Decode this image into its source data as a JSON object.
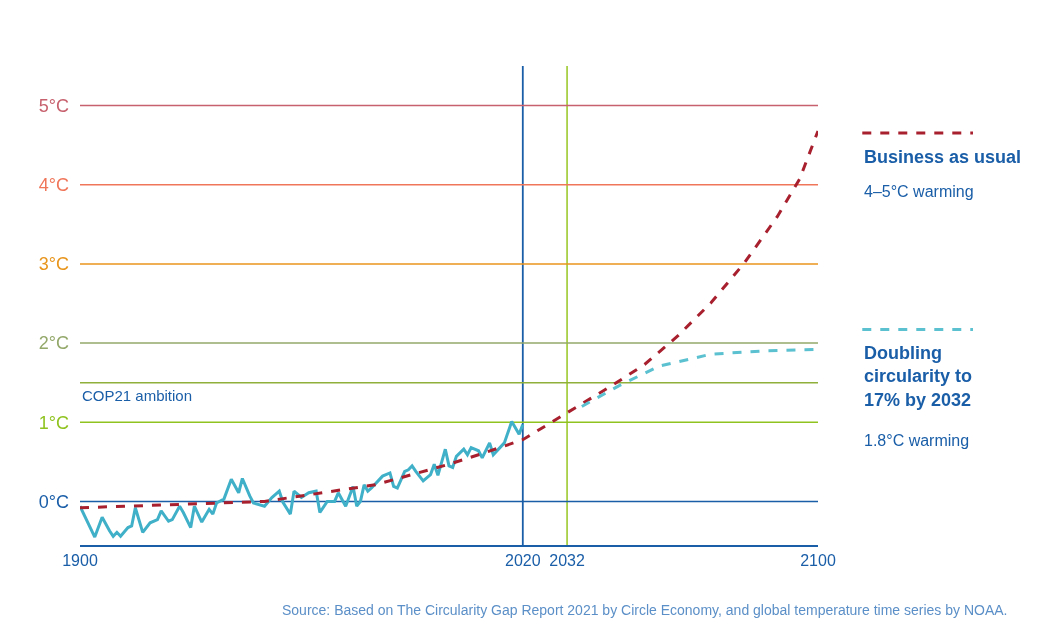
{
  "chart_data": {
    "type": "line",
    "x": [
      1900,
      1904,
      1906,
      1908,
      1909,
      1910,
      1911,
      1913,
      1914,
      1915,
      1917,
      1919,
      1921,
      1922,
      1924,
      1925,
      1927,
      1928,
      1930,
      1931,
      1933,
      1935,
      1936,
      1937,
      1939,
      1941,
      1943,
      1944,
      1946,
      1947,
      1950,
      1952,
      1954,
      1955,
      1957,
      1958,
      1960,
      1962,
      1964,
      1965,
      1967,
      1969,
      1970,
      1972,
      1974,
      1975,
      1976,
      1977,
      1978,
      1979,
      1982,
      1984,
      1985,
      1986,
      1988,
      1989,
      1990,
      1991,
      1993,
      1995,
      1996,
      1997,
      1999,
      2000,
      2001,
      2002,
      2004,
      2005,
      2006,
      2008,
      2009,
      2011,
      2012,
      2015,
      2017,
      2019,
      2020
    ],
    "series": [
      {
        "color": "#3fb0c8",
        "line_style": "solid",
        "values": [
          -0.06,
          -0.45,
          -0.2,
          -0.37,
          -0.44,
          -0.39,
          -0.44,
          -0.33,
          -0.31,
          -0.08,
          -0.39,
          -0.27,
          -0.23,
          -0.12,
          -0.25,
          -0.23,
          -0.06,
          -0.14,
          -0.33,
          -0.06,
          -0.26,
          -0.1,
          -0.16,
          -0.02,
          0.03,
          0.28,
          0.11,
          0.29,
          0.07,
          -0.02,
          -0.06,
          0.05,
          0.13,
          -0.01,
          -0.16,
          0.13,
          0.05,
          0.11,
          0.13,
          -0.14,
          0.0,
          0.0,
          0.11,
          -0.06,
          0.19,
          -0.06,
          0.0,
          0.21,
          0.13,
          0.17,
          0.32,
          0.36,
          0.19,
          0.17,
          0.38,
          0.4,
          0.45,
          0.38,
          0.26,
          0.34,
          0.47,
          0.33,
          0.66,
          0.45,
          0.43,
          0.57,
          0.66,
          0.59,
          0.68,
          0.64,
          0.55,
          0.74,
          0.59,
          0.74,
          1.01,
          0.85,
          0.97
        ]
      },
      {
        "name": "Business as usual",
        "color": "#a8202e",
        "line_style": "dashed",
        "x": [
          1900,
          1950,
          1980,
          2000,
          2010,
          2020,
          2032,
          2044,
          2053,
          2062,
          2071,
          2080,
          2089,
          2095,
          2100
        ],
        "values": [
          -0.08,
          0.0,
          0.21,
          0.47,
          0.62,
          0.78,
          1.12,
          1.46,
          1.73,
          2.09,
          2.51,
          3.01,
          3.6,
          4.07,
          4.68
        ]
      },
      {
        "name": "Doubling circularity to 17% by 2032",
        "color": "#5bc0d0",
        "line_style": "dashed",
        "x": [
          2036,
          2046,
          2057,
          2071,
          2085,
          2100
        ],
        "values": [
          1.2,
          1.46,
          1.71,
          1.86,
          1.9,
          1.92
        ]
      }
    ],
    "xlim": [
      1900,
      2100
    ],
    "xticks": [
      1900,
      2020,
      2032,
      2100
    ],
    "ylim": [
      -0.55,
      5.5
    ],
    "yticks": [
      {
        "value": 0,
        "label": "0°C"
      },
      {
        "value": 1,
        "label": "1°C"
      },
      {
        "value": 2,
        "label": "2°C"
      },
      {
        "value": 3,
        "label": "3°C"
      },
      {
        "value": 4,
        "label": "4°C"
      },
      {
        "value": 5,
        "label": "5°C"
      }
    ],
    "ref_lines": [
      {
        "axis": "y",
        "value": 0,
        "color": "#1a5ea8"
      },
      {
        "axis": "y",
        "value": 1,
        "color": "#8fc31f"
      },
      {
        "axis": "y",
        "value": 1.5,
        "color": "#8fb03a",
        "label": "COP21 ambition"
      },
      {
        "axis": "y",
        "value": 2,
        "color": "#93a86a"
      },
      {
        "axis": "y",
        "value": 3,
        "color": "#e8951c"
      },
      {
        "axis": "y",
        "value": 4,
        "color": "#f0765a"
      },
      {
        "axis": "y",
        "value": 5,
        "color": "#c7616e"
      },
      {
        "axis": "x",
        "value": 2020,
        "color": "#1a5ea8"
      },
      {
        "axis": "x",
        "value": 2032,
        "color": "#a8cf45"
      }
    ],
    "grid": false,
    "legend": "right",
    "annotations": [
      "4–5°C warming",
      "1.8°C warming",
      "Source: Based on The Circularity Gap Report 2021 by Circle Economy, and global temperature time series by NOAA."
    ]
  }
}
